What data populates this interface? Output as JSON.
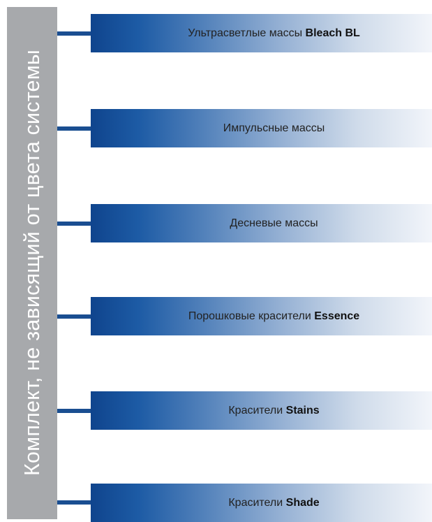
{
  "side_label": "Комплект, не зависящий от цвета системы",
  "items": [
    {
      "text": "Ультрасветлые массы",
      "bold": "Bleach BL"
    },
    {
      "text": "Импульсные массы",
      "bold": ""
    },
    {
      "text": "Десневые массы",
      "bold": ""
    },
    {
      "text": "Порошковые красители",
      "bold": "Essence"
    },
    {
      "text": "Красители",
      "bold": "Stains"
    },
    {
      "text": "Красители",
      "bold": "Shade"
    }
  ],
  "colors": {
    "side_bar": "#a7a9ac",
    "connector": "#1a4e91",
    "box_gradient_start": "#0f448d",
    "box_gradient_end": "#f2f5fa"
  }
}
